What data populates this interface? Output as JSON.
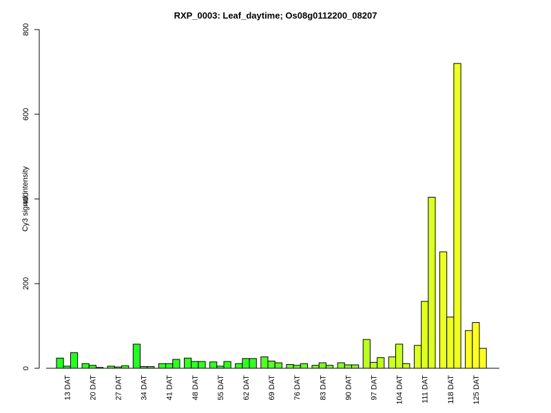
{
  "chart_data": {
    "type": "bar",
    "title": "RXP_0003: Leaf_daytime; Os08g0112200_08207",
    "xlabel": "",
    "ylabel": "Cy3 signal intensity",
    "ylim": [
      0,
      800
    ],
    "yticks": [
      0,
      200,
      400,
      600,
      800
    ],
    "grid": false,
    "categories": [
      "13 DAT",
      "20 DAT",
      "27 DAT",
      "34 DAT",
      "41 DAT",
      "48 DAT",
      "55 DAT",
      "62 DAT",
      "69 DAT",
      "76 DAT",
      "83 DAT",
      "90 DAT",
      "97 DAT",
      "104 DAT",
      "111 DAT",
      "118 DAT",
      "125 DAT"
    ],
    "values": [
      [
        24,
        5,
        37
      ],
      [
        11,
        7,
        2
      ],
      [
        5,
        3,
        6
      ],
      [
        57,
        4,
        4
      ],
      [
        11,
        11,
        21
      ],
      [
        24,
        16,
        16
      ],
      [
        15,
        5,
        16
      ],
      [
        11,
        23,
        23
      ],
      [
        27,
        17,
        13
      ],
      [
        9,
        7,
        11
      ],
      [
        7,
        13,
        7
      ],
      [
        13,
        8,
        8
      ],
      [
        68,
        14,
        25
      ],
      [
        27,
        57,
        11
      ],
      [
        54,
        158,
        404
      ],
      [
        275,
        121,
        720
      ],
      [
        89,
        108,
        47
      ]
    ],
    "colors": [
      "#22ff22",
      "#33ff22",
      "#44ff22",
      "#22ff22",
      "#33ff22",
      "#33ff22",
      "#33ff22",
      "#33ff22",
      "#55ff22",
      "#66ff22",
      "#77ff22",
      "#88ff22",
      "#bbff22",
      "#ccff22",
      "#ddff22",
      "#eeff22",
      "#ffff22"
    ]
  }
}
